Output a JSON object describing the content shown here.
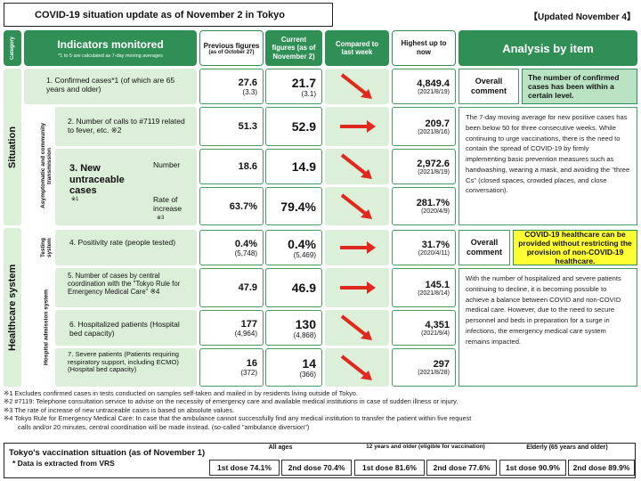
{
  "title": "COVID-19 situation update as of November 2 in Tokyo",
  "updated": "【Updated November 4】",
  "headers": {
    "category": "Category",
    "indicators": "Indicators monitored",
    "indicators_note": "*1 to 5 are calculated as 7-day moving averages",
    "previous": "Previous figures",
    "previous_sub": "(as of October 27)",
    "current": "Current figures (as of November 2)",
    "compared": "Compared to last week",
    "highest": "Highest up to now",
    "analysis": "Analysis by item"
  },
  "categories": {
    "situation": "Situation",
    "healthcare": "Healthcare system",
    "asymptomatic": "Asymptomatic and community transmission",
    "testing": "Testing system",
    "hospital": "Hospital admission system"
  },
  "rows": [
    {
      "label": "1. Confirmed cases*1 (of which are 65 years and older)",
      "prev": "27.6",
      "prev_sub": "(3.3)",
      "cur": "21.7",
      "cur_sub": "(3.1)",
      "trend": "down",
      "peak": "4,849.4",
      "peak_date": "(2021/8/19)"
    },
    {
      "label": "2. Number of calls to #7119 related to fever, etc. ※2",
      "prev": "51.3",
      "prev_sub": "",
      "cur": "52.9",
      "cur_sub": "",
      "trend": "flat",
      "peak": "209.7",
      "peak_date": "(2021/8/16)"
    },
    {
      "label": "3. New untraceable cases",
      "label_note": "※1",
      "sub_label": "Number",
      "prev": "18.6",
      "prev_sub": "",
      "cur": "14.9",
      "cur_sub": "",
      "trend": "down",
      "peak": "2,972.6",
      "peak_date": "(2021/8/19)"
    },
    {
      "sub_label": "Rate of increase",
      "sub_note": "※3",
      "prev": "63.7%",
      "prev_sub": "",
      "cur": "79.4%",
      "cur_sub": "",
      "trend": "down",
      "peak": "281.7%",
      "peak_date": "(2020/4/9)"
    },
    {
      "label": "4. Positivity rate (people tested)",
      "prev": "0.4%",
      "prev_sub": "(5,748)",
      "cur": "0.4%",
      "cur_sub": "(5,469)",
      "trend": "flat",
      "peak": "31.7%",
      "peak_date": "(2020/4/11)"
    },
    {
      "label": "5. Number of cases by central coordination with the \"Tokyo Rule for Emergency Medical Care\" ※4",
      "prev": "47.9",
      "prev_sub": "",
      "cur": "46.9",
      "cur_sub": "",
      "trend": "flat",
      "peak": "145.1",
      "peak_date": "(2021/8/14)"
    },
    {
      "label": "6. Hospitalized patients (Hospital bed capacity)",
      "prev": "177",
      "prev_sub": "(4,964)",
      "cur": "130",
      "cur_sub": "(4,868)",
      "trend": "down",
      "peak": "4,351",
      "peak_date": "(2021/9/4)"
    },
    {
      "label": "7. Severe patients (Patients requiring respiratory support, including ECMO) (Hospital bed capacity)",
      "prev": "16",
      "prev_sub": "(372)",
      "cur": "14",
      "cur_sub": "(366)",
      "trend": "down",
      "peak": "297",
      "peak_date": "(2021/8/28)"
    }
  ],
  "analysis": {
    "overall_label": "Overall comment",
    "situation_comment": "The number of confirmed cases has been within a certain level.",
    "situation_text": "The 7-day moving average for new positive cases has been below 50 for three consecutive weeks. While continuing to urge vaccinations, there is the need to contain the spread of COVID-19 by firmly implementing basic prevention measures such as handwashing, wearing a mask, and avoiding the \"three Cs\" (closed spaces, crowded places, and close conversation).",
    "healthcare_comment": "COVID-19 healthcare can be provided without restricting the provision of non-COVID-19 healthcare.",
    "healthcare_text": "With the number of hospitalized and severe patients continuing to decline, it is becoming possible to achieve a balance between COVID and non-COVID medical care. However, due to the need to secure personnel and beds in preparation for a surge in infections, the emergency medical care system remains impacted."
  },
  "footnotes": [
    "※1  Excludes confirmed cases in tests conducted on samples self-taken and mailed in by residents living outside of Tokyo.",
    "※2  #7119: Telephone consultation service to advise on the necessity of emergency care and available medical institutions in case of sudden illness or injury.",
    "※3  The rate of increase of new untraceable cases is based on absolute values.",
    "※4  Tokyo Rule for Emergency Medical Care: In case that the ambulance cannot successfully find any medical institution to transfer the patient within five request",
    "calls and/or 20 minutes, central coordination will be made instead. (so-called \"ambulance diversion\")"
  ],
  "vaccination": {
    "title": "Tokyo's vaccination situation (as of November 1)",
    "note": "* Data is extracted from VRS",
    "groups": [
      {
        "name": "All ages",
        "first": "1st dose 74.1%",
        "second": "2nd dose 70.4%"
      },
      {
        "name": "12 years and older (eligible for vaccination)",
        "first": "1st dose 81.6%",
        "second": "2nd dose 77.6%"
      },
      {
        "name": "Elderly (65 years and older)",
        "first": "1st dose 90.9%",
        "second": "2nd dose 89.9%"
      }
    ]
  },
  "colors": {
    "header_green": "#2f8f55",
    "cell_green": "#dcefd9",
    "arrow_red": "#e0281e",
    "highlight_yellow": "#ffff33"
  }
}
